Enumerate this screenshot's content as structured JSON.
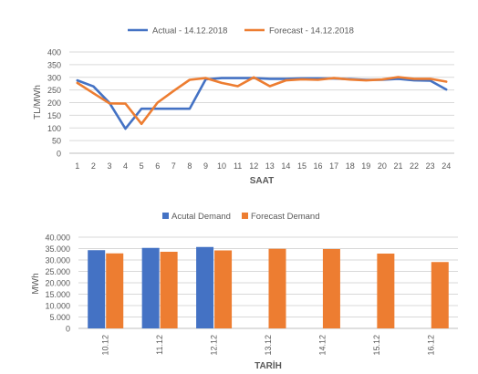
{
  "chart_data": [
    {
      "type": "line",
      "xlabel": "SAAT",
      "ylabel": "TL/MWh",
      "ylim": [
        0,
        400
      ],
      "yticks": [
        "0",
        "50",
        "100",
        "150",
        "200",
        "250",
        "300",
        "350",
        "400"
      ],
      "categories": [
        "1",
        "2",
        "3",
        "4",
        "5",
        "6",
        "7",
        "8",
        "9",
        "10",
        "11",
        "12",
        "13",
        "14",
        "15",
        "16",
        "17",
        "18",
        "19",
        "20",
        "21",
        "22",
        "23",
        "24"
      ],
      "grid": true,
      "legend": "top",
      "series": [
        {
          "name": "Actual - 14.12.2018",
          "color": "#4472C4",
          "values": [
            288,
            264,
            199,
            97,
            176,
            176,
            176,
            176,
            292,
            297,
            297,
            297,
            294,
            294,
            296,
            296,
            295,
            293,
            290,
            290,
            294,
            288,
            287,
            252
          ]
        },
        {
          "name": "Forecast - 14.12.2018",
          "color": "#ED7D31",
          "values": [
            278,
            237,
            197,
            196,
            116,
            200,
            246,
            290,
            297,
            278,
            265,
            300,
            265,
            288,
            292,
            290,
            297,
            291,
            288,
            291,
            301,
            294,
            294,
            283
          ]
        }
      ]
    },
    {
      "type": "bar",
      "xlabel": "TARİH",
      "ylabel": "MWh",
      "ylim": [
        0,
        40000
      ],
      "yticks": [
        "0",
        "5.000",
        "10.000",
        "15.000",
        "20.000",
        "25.000",
        "30.000",
        "35.000",
        "40.000"
      ],
      "categories": [
        "10.12",
        "11.12",
        "12.12",
        "13.12",
        "14.12",
        "15.12",
        "16.12"
      ],
      "legend": "top",
      "series": [
        {
          "name": "Acutal Demand",
          "color": "#4472C4",
          "values": [
            34300,
            35300,
            35700,
            null,
            null,
            null,
            null
          ]
        },
        {
          "name": "Forecast Demand",
          "color": "#ED7D31",
          "values": [
            32900,
            33600,
            34200,
            34900,
            34800,
            32800,
            29100
          ]
        }
      ]
    }
  ]
}
